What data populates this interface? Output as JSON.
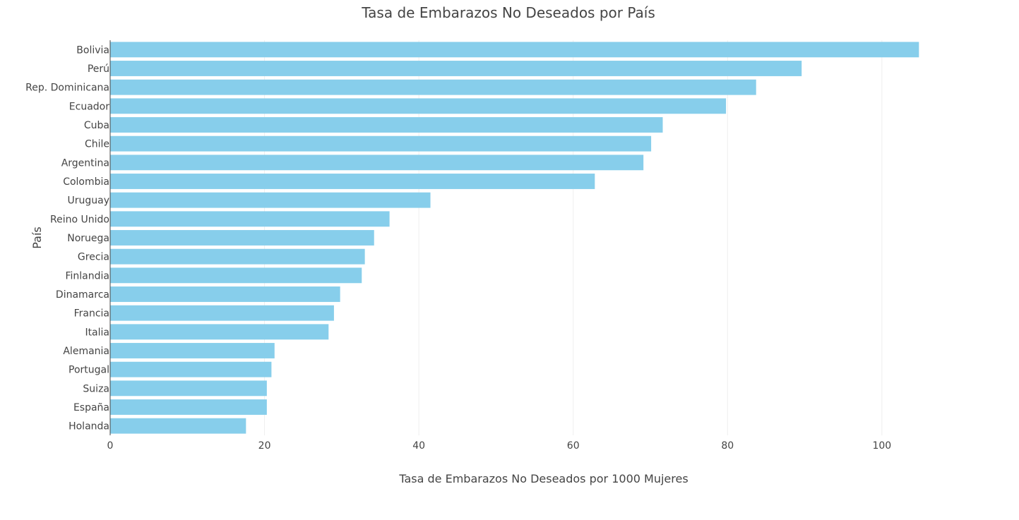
{
  "chart_data": {
    "type": "bar",
    "orientation": "horizontal",
    "title": "Tasa de Embarazos No Deseados por País",
    "xlabel": "Tasa de Embarazos No Deseados por 1000 Mujeres",
    "ylabel": "País",
    "xlim": [
      0,
      112
    ],
    "xticks": [
      0,
      20,
      40,
      60,
      80,
      100
    ],
    "grid": true,
    "bar_color": "#87CEEB",
    "categories": [
      "Bolivia",
      "Perú",
      "Rep. Dominicana",
      "Ecuador",
      "Cuba",
      "Chile",
      "Argentina",
      "Colombia",
      "Uruguay",
      "Reino Unido",
      "Noruega",
      "Grecia",
      "Finlandia",
      "Dinamarca",
      "Francia",
      "Italia",
      "Alemania",
      "Portugal",
      "Suiza",
      "España",
      "Holanda"
    ],
    "values": [
      104.8,
      89.6,
      83.7,
      79.8,
      71.6,
      70.1,
      69.1,
      62.8,
      41.5,
      36.2,
      34.2,
      33.0,
      32.6,
      29.8,
      29.0,
      28.3,
      21.3,
      20.9,
      20.3,
      20.3,
      17.6
    ]
  }
}
